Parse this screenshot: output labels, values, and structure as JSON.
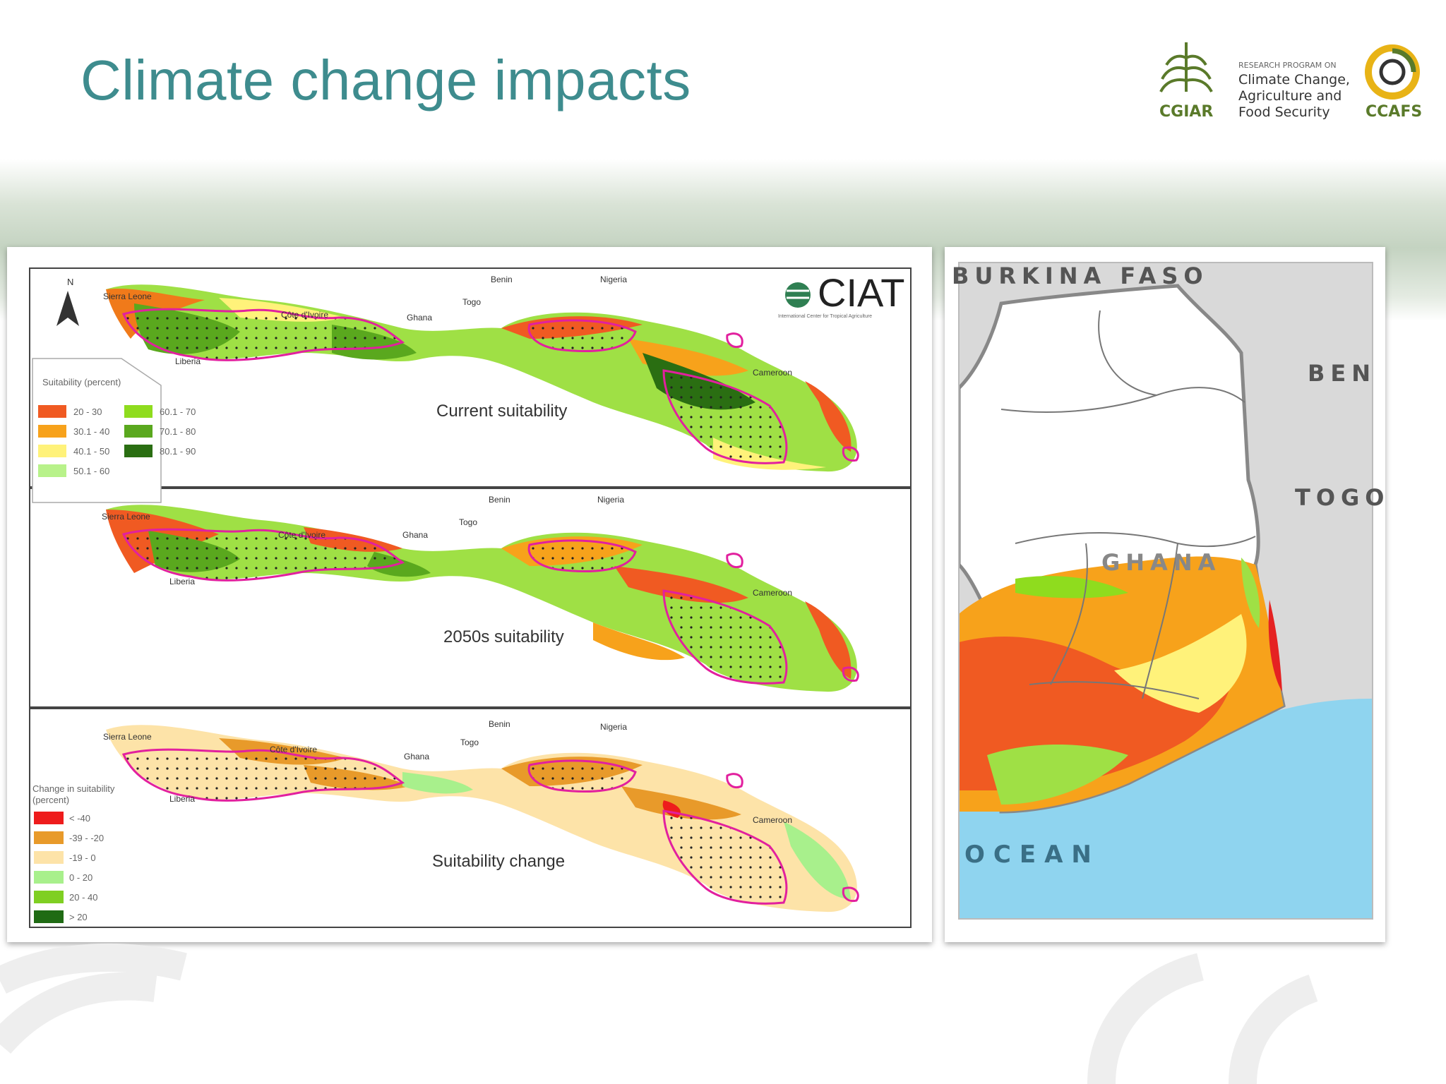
{
  "slide": {
    "title": "Climate change impacts"
  },
  "logos": {
    "cgiar": "CGIAR",
    "program_lines": [
      "RESEARCH PROGRAM ON",
      "Climate Change,",
      "Agriculture and",
      "Food Security"
    ],
    "ccafs": "CCAFS"
  },
  "west_africa_maps": {
    "north_symbol": "N",
    "ciat_logo": "CIAT",
    "ciat_tagline": "International Center for Tropical Agriculture",
    "panels": [
      {
        "caption": "Current suitability",
        "countries": [
          "Sierra Leone",
          "Côte d'Ivoire",
          "Ghana",
          "Togo",
          "Benin",
          "Nigeria",
          "Liberia",
          "Cameroon"
        ]
      },
      {
        "caption": "2050s suitability",
        "countries": [
          "Sierra Leone",
          "Côte d'Ivoire",
          "Ghana",
          "Togo",
          "Benin",
          "Nigeria",
          "Liberia",
          "Cameroon"
        ]
      },
      {
        "caption": "Suitability change",
        "countries": [
          "Sierra Leone",
          "Côte d'Ivoire",
          "Ghana",
          "Togo",
          "Benin",
          "Nigeria",
          "Liberia",
          "Cameroon"
        ]
      }
    ],
    "suitability_legend": {
      "title": "Suitability (percent)",
      "items": [
        {
          "label": "20 - 30",
          "color": "#f05a22"
        },
        {
          "label": "30.1 - 40",
          "color": "#f7a21b"
        },
        {
          "label": "40.1 - 50",
          "color": "#fff27a"
        },
        {
          "label": "50.1 - 60",
          "color": "#b8f28a"
        },
        {
          "label": "60.1 - 70",
          "color": "#8fdc1e"
        },
        {
          "label": "70.1 - 80",
          "color": "#5aa81e"
        },
        {
          "label": "80.1 - 90",
          "color": "#2a6e12"
        }
      ]
    },
    "change_legend": {
      "title_lines": [
        "Change in suitability",
        "(percent)"
      ],
      "items": [
        {
          "label": "< -40",
          "color": "#ee1c1c"
        },
        {
          "label": "-39 - -20",
          "color": "#e89a2a"
        },
        {
          "label": "-19 - 0",
          "color": "#fde3a8"
        },
        {
          "label": "0 - 20",
          "color": "#a8f08c"
        },
        {
          "label": "20 - 40",
          "color": "#7fcf22"
        },
        {
          "label": "> 20",
          "color": "#1f6b14"
        }
      ]
    }
  },
  "ghana_map": {
    "labels": {
      "burkina": "BURKINA FASO",
      "benin": "BEN",
      "togo": "TOGO",
      "ghana": "GHANA",
      "ocean": "OCEAN"
    },
    "colors": {
      "ocean": "#8fd4ef",
      "neighbor": "#d9d9d9",
      "land": "#ffffff"
    }
  }
}
